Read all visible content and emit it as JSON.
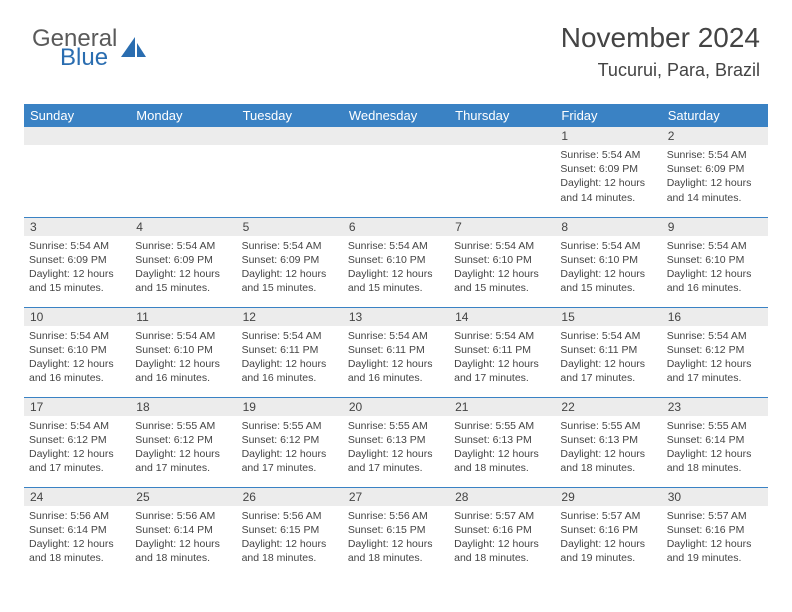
{
  "logo": {
    "word1": "General",
    "word2": "Blue"
  },
  "header": {
    "month_title": "November 2024",
    "location": "Tucurui, Para, Brazil"
  },
  "colors": {
    "header_bg": "#3a82c4",
    "header_fg": "#ffffff",
    "daynum_bg": "#ececec",
    "border": "#3a82c4",
    "text": "#444444",
    "logo_gray": "#5a5a5a",
    "logo_blue": "#2a6db0"
  },
  "day_labels": [
    "Sunday",
    "Monday",
    "Tuesday",
    "Wednesday",
    "Thursday",
    "Friday",
    "Saturday"
  ],
  "weeks": [
    [
      {
        "n": "",
        "lines": []
      },
      {
        "n": "",
        "lines": []
      },
      {
        "n": "",
        "lines": []
      },
      {
        "n": "",
        "lines": []
      },
      {
        "n": "",
        "lines": []
      },
      {
        "n": "1",
        "lines": [
          "Sunrise: 5:54 AM",
          "Sunset: 6:09 PM",
          "Daylight: 12 hours",
          "and 14 minutes."
        ]
      },
      {
        "n": "2",
        "lines": [
          "Sunrise: 5:54 AM",
          "Sunset: 6:09 PM",
          "Daylight: 12 hours",
          "and 14 minutes."
        ]
      }
    ],
    [
      {
        "n": "3",
        "lines": [
          "Sunrise: 5:54 AM",
          "Sunset: 6:09 PM",
          "Daylight: 12 hours",
          "and 15 minutes."
        ]
      },
      {
        "n": "4",
        "lines": [
          "Sunrise: 5:54 AM",
          "Sunset: 6:09 PM",
          "Daylight: 12 hours",
          "and 15 minutes."
        ]
      },
      {
        "n": "5",
        "lines": [
          "Sunrise: 5:54 AM",
          "Sunset: 6:09 PM",
          "Daylight: 12 hours",
          "and 15 minutes."
        ]
      },
      {
        "n": "6",
        "lines": [
          "Sunrise: 5:54 AM",
          "Sunset: 6:10 PM",
          "Daylight: 12 hours",
          "and 15 minutes."
        ]
      },
      {
        "n": "7",
        "lines": [
          "Sunrise: 5:54 AM",
          "Sunset: 6:10 PM",
          "Daylight: 12 hours",
          "and 15 minutes."
        ]
      },
      {
        "n": "8",
        "lines": [
          "Sunrise: 5:54 AM",
          "Sunset: 6:10 PM",
          "Daylight: 12 hours",
          "and 15 minutes."
        ]
      },
      {
        "n": "9",
        "lines": [
          "Sunrise: 5:54 AM",
          "Sunset: 6:10 PM",
          "Daylight: 12 hours",
          "and 16 minutes."
        ]
      }
    ],
    [
      {
        "n": "10",
        "lines": [
          "Sunrise: 5:54 AM",
          "Sunset: 6:10 PM",
          "Daylight: 12 hours",
          "and 16 minutes."
        ]
      },
      {
        "n": "11",
        "lines": [
          "Sunrise: 5:54 AM",
          "Sunset: 6:10 PM",
          "Daylight: 12 hours",
          "and 16 minutes."
        ]
      },
      {
        "n": "12",
        "lines": [
          "Sunrise: 5:54 AM",
          "Sunset: 6:11 PM",
          "Daylight: 12 hours",
          "and 16 minutes."
        ]
      },
      {
        "n": "13",
        "lines": [
          "Sunrise: 5:54 AM",
          "Sunset: 6:11 PM",
          "Daylight: 12 hours",
          "and 16 minutes."
        ]
      },
      {
        "n": "14",
        "lines": [
          "Sunrise: 5:54 AM",
          "Sunset: 6:11 PM",
          "Daylight: 12 hours",
          "and 17 minutes."
        ]
      },
      {
        "n": "15",
        "lines": [
          "Sunrise: 5:54 AM",
          "Sunset: 6:11 PM",
          "Daylight: 12 hours",
          "and 17 minutes."
        ]
      },
      {
        "n": "16",
        "lines": [
          "Sunrise: 5:54 AM",
          "Sunset: 6:12 PM",
          "Daylight: 12 hours",
          "and 17 minutes."
        ]
      }
    ],
    [
      {
        "n": "17",
        "lines": [
          "Sunrise: 5:54 AM",
          "Sunset: 6:12 PM",
          "Daylight: 12 hours",
          "and 17 minutes."
        ]
      },
      {
        "n": "18",
        "lines": [
          "Sunrise: 5:55 AM",
          "Sunset: 6:12 PM",
          "Daylight: 12 hours",
          "and 17 minutes."
        ]
      },
      {
        "n": "19",
        "lines": [
          "Sunrise: 5:55 AM",
          "Sunset: 6:12 PM",
          "Daylight: 12 hours",
          "and 17 minutes."
        ]
      },
      {
        "n": "20",
        "lines": [
          "Sunrise: 5:55 AM",
          "Sunset: 6:13 PM",
          "Daylight: 12 hours",
          "and 17 minutes."
        ]
      },
      {
        "n": "21",
        "lines": [
          "Sunrise: 5:55 AM",
          "Sunset: 6:13 PM",
          "Daylight: 12 hours",
          "and 18 minutes."
        ]
      },
      {
        "n": "22",
        "lines": [
          "Sunrise: 5:55 AM",
          "Sunset: 6:13 PM",
          "Daylight: 12 hours",
          "and 18 minutes."
        ]
      },
      {
        "n": "23",
        "lines": [
          "Sunrise: 5:55 AM",
          "Sunset: 6:14 PM",
          "Daylight: 12 hours",
          "and 18 minutes."
        ]
      }
    ],
    [
      {
        "n": "24",
        "lines": [
          "Sunrise: 5:56 AM",
          "Sunset: 6:14 PM",
          "Daylight: 12 hours",
          "and 18 minutes."
        ]
      },
      {
        "n": "25",
        "lines": [
          "Sunrise: 5:56 AM",
          "Sunset: 6:14 PM",
          "Daylight: 12 hours",
          "and 18 minutes."
        ]
      },
      {
        "n": "26",
        "lines": [
          "Sunrise: 5:56 AM",
          "Sunset: 6:15 PM",
          "Daylight: 12 hours",
          "and 18 minutes."
        ]
      },
      {
        "n": "27",
        "lines": [
          "Sunrise: 5:56 AM",
          "Sunset: 6:15 PM",
          "Daylight: 12 hours",
          "and 18 minutes."
        ]
      },
      {
        "n": "28",
        "lines": [
          "Sunrise: 5:57 AM",
          "Sunset: 6:16 PM",
          "Daylight: 12 hours",
          "and 18 minutes."
        ]
      },
      {
        "n": "29",
        "lines": [
          "Sunrise: 5:57 AM",
          "Sunset: 6:16 PM",
          "Daylight: 12 hours",
          "and 19 minutes."
        ]
      },
      {
        "n": "30",
        "lines": [
          "Sunrise: 5:57 AM",
          "Sunset: 6:16 PM",
          "Daylight: 12 hours",
          "and 19 minutes."
        ]
      }
    ]
  ]
}
